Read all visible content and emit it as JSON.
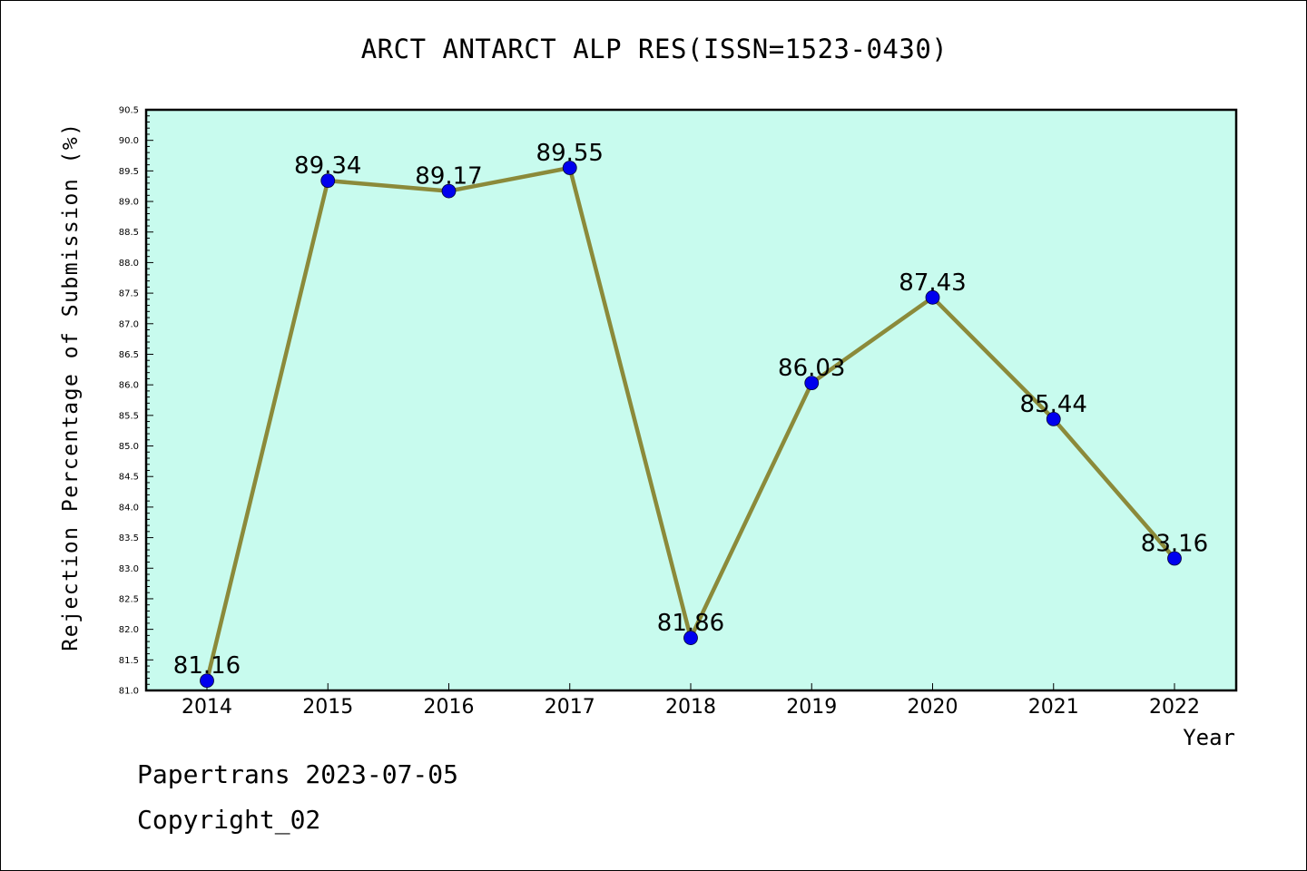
{
  "title": "ARCT ANTARCT ALP RES(ISSN=1523-0430)",
  "footer": {
    "line1": "Papertrans 2023-07-05",
    "line2": "Copyright_02"
  },
  "colors": {
    "plot_background": "#c8fbee",
    "line": "#8b8a3a",
    "marker": "#0000ee",
    "axis": "#000000"
  },
  "chart_data": {
    "type": "line",
    "title": "ARCT ANTARCT ALP RES(ISSN=1523-0430)",
    "xlabel": "Year",
    "ylabel": "Rejection Percentage of Submission (%)",
    "categories": [
      "2014",
      "2015",
      "2016",
      "2017",
      "2018",
      "2019",
      "2020",
      "2021",
      "2022"
    ],
    "series": [
      {
        "values": [
          81.16,
          89.34,
          89.17,
          89.55,
          81.86,
          86.03,
          87.43,
          85.44,
          83.16
        ],
        "data_labels": [
          "81.16",
          "89.34",
          "89.17",
          "89.55",
          "81.86",
          "86.03",
          "87.43",
          "85.44",
          "83.16"
        ]
      }
    ],
    "ylim": [
      81.0,
      90.5
    ],
    "yticks": [
      "81.0",
      "81.5",
      "82.0",
      "82.5",
      "83.0",
      "83.5",
      "84.0",
      "84.5",
      "85.0",
      "85.5",
      "86.0",
      "86.5",
      "87.0",
      "87.5",
      "88.0",
      "88.5",
      "89.0",
      "89.5",
      "90.0",
      "90.5"
    ],
    "grid": false,
    "legend": "none",
    "markers": "circle"
  }
}
